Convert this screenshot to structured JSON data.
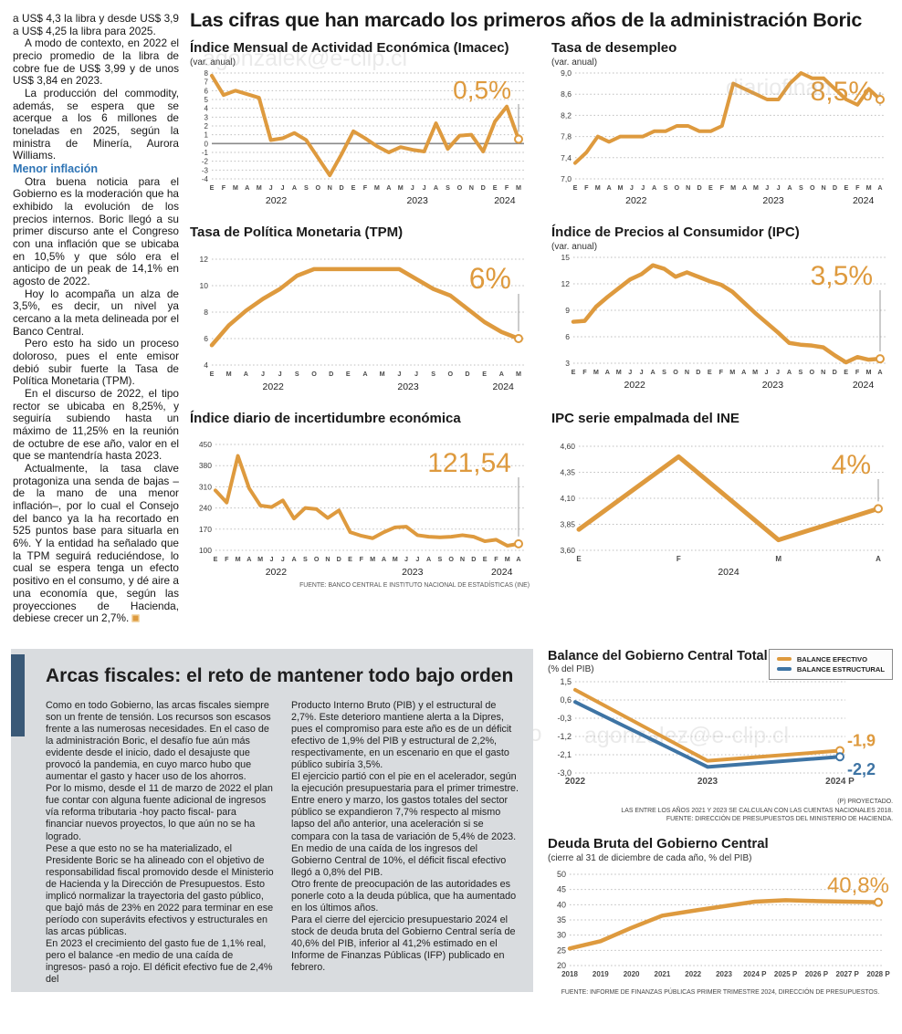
{
  "main_title": "Las cifras que han marcado los primeros años de la administración Boric",
  "colors": {
    "orange": "#DE9A3E",
    "blue": "#3E74A4",
    "subhead_blue": "#2E74B5",
    "accent_bar": "#3A5977",
    "fiscal_bg": "#D9DCDF"
  },
  "watermarks": {
    "w1": "agonzalek@e-clip.cl",
    "w2": "diariofinan",
    "w3": "diariofinanciero",
    "w4": "agonzalez@e-clip.cl"
  },
  "article": {
    "paragraphs": [
      "a US$ 4,3 la libra y desde US$ 3,9 a US$ 4,25 la libra para 2025.",
      "A modo de contexto, en 2022 el precio promedio de la libra de cobre fue de US$ 3,99 y de unos US$ 3,84 en 2023.",
      "La producción del commodity, además, se espera que se acerque a los 6 millones de toneladas en 2025, según la ministra de Minería, Aurora Williams."
    ],
    "subhead": "Menor inflación",
    "paragraphs2": [
      "Otra buena noticia para el Gobierno es la moderación que ha exhibido la evolución de los precios internos. Boric llegó a su primer discurso ante el Congreso con una inflación que se ubicaba en 10,5% y que sólo era el anticipo de un peak de 14,1% en agosto de 2022.",
      "Hoy lo acompaña un alza de 3,5%, es decir, un nivel ya cercano a la meta delineada por el Banco Central.",
      "Pero esto ha sido un proceso doloroso, pues el ente emisor debió subir fuerte la Tasa de Política Monetaria (TPM).",
      "En el discurso de 2022, el tipo rector se ubicaba en 8,25%, y seguiría subiendo hasta un máximo de 11,25% en la reunión de octubre de ese año, valor en el que se mantendría hasta 2023.",
      "Actualmente, la tasa clave protagoniza una senda de bajas –de la mano de una menor inflación–, por lo cual el Consejo del banco ya la ha recortado en 525 puntos base para situarla en 6%. Y la entidad ha señalado que la TPM seguirá reduciéndose, lo cual se espera tenga un efecto positivo en el consumo, y dé aire a una economía que, según las proyecciones de Hacienda, debiese crecer un 2,7%."
    ]
  },
  "chart_data": [
    {
      "id": "imacec",
      "type": "line",
      "title": "Índice Mensual de Actividad Económica (Imacec)",
      "subtitle": "(var. anual)",
      "ylim": [
        -4,
        8
      ],
      "zero_line": true,
      "yticks": [
        {
          "v": 8,
          "t": "8"
        },
        {
          "v": 7,
          "t": "7"
        },
        {
          "v": 6,
          "t": "6"
        },
        {
          "v": 5,
          "t": "5"
        },
        {
          "v": 4,
          "t": "4"
        },
        {
          "v": 3,
          "t": "3"
        },
        {
          "v": 2,
          "t": "2"
        },
        {
          "v": 1,
          "t": "1"
        },
        {
          "v": 0,
          "t": "0"
        },
        {
          "v": -1,
          "t": "-1"
        },
        {
          "v": -2,
          "t": "-2"
        },
        {
          "v": -3,
          "t": "-3"
        },
        {
          "v": -4,
          "t": "-4"
        }
      ],
      "xlabels": [
        "E",
        "F",
        "M",
        "A",
        "M",
        "J",
        "J",
        "A",
        "S",
        "O",
        "N",
        "D",
        "E",
        "F",
        "M",
        "A",
        "M",
        "J",
        "J",
        "A",
        "S",
        "O",
        "N",
        "D",
        "E",
        "F",
        "M"
      ],
      "years": [
        {
          "label": "2022",
          "f": 0.21
        },
        {
          "label": "2023",
          "f": 0.67
        },
        {
          "label": "2024",
          "f": 0.955
        }
      ],
      "series": [
        {
          "name": "Imacec var. anual",
          "color": "#DE9A3E",
          "values": [
            7.7,
            5.5,
            6.0,
            5.6,
            5.2,
            0.4,
            0.6,
            1.2,
            0.4,
            -1.6,
            -3.6,
            -1.2,
            1.4,
            0.6,
            -0.3,
            -1.0,
            -0.4,
            -0.7,
            -0.9,
            2.3,
            -0.6,
            0.9,
            1.0,
            -0.9,
            2.5,
            4.2,
            0.5
          ]
        }
      ],
      "highlight": "0,5%"
    },
    {
      "id": "desempleo",
      "type": "line",
      "title": "Tasa de desempleo",
      "subtitle": "(var. anual)",
      "ylim": [
        7.0,
        9.0
      ],
      "yticks": [
        {
          "v": 9.0,
          "t": "9,0"
        },
        {
          "v": 8.6,
          "t": "8,6"
        },
        {
          "v": 8.2,
          "t": "8,2"
        },
        {
          "v": 7.8,
          "t": "7,8"
        },
        {
          "v": 7.4,
          "t": "7,4"
        },
        {
          "v": 7.0,
          "t": "7,0"
        }
      ],
      "xlabels": [
        "E",
        "F",
        "M",
        "A",
        "M",
        "J",
        "J",
        "A",
        "S",
        "O",
        "N",
        "D",
        "E",
        "F",
        "M",
        "A",
        "M",
        "J",
        "J",
        "A",
        "S",
        "O",
        "N",
        "D",
        "E",
        "F",
        "M",
        "A"
      ],
      "years": [
        {
          "label": "2022",
          "f": 0.2
        },
        {
          "label": "2023",
          "f": 0.65
        },
        {
          "label": "2024",
          "f": 0.945
        }
      ],
      "series": [
        {
          "name": "Tasa de desempleo",
          "color": "#DE9A3E",
          "values": [
            7.3,
            7.5,
            7.8,
            7.7,
            7.8,
            7.8,
            7.8,
            7.9,
            7.9,
            8.0,
            8.0,
            7.9,
            7.9,
            8.0,
            8.8,
            8.7,
            8.6,
            8.5,
            8.5,
            8.8,
            9.0,
            8.9,
            8.9,
            8.7,
            8.5,
            8.4,
            8.7,
            8.5
          ]
        }
      ],
      "highlight": "8,5%"
    },
    {
      "id": "tpm",
      "type": "line",
      "title": "Tasa de Política Monetaria (TPM)",
      "subtitle": "",
      "ylim": [
        4,
        12
      ],
      "yticks": [
        {
          "v": 12,
          "t": "12"
        },
        {
          "v": 10,
          "t": "10"
        },
        {
          "v": 8,
          "t": "8"
        },
        {
          "v": 6,
          "t": "6"
        },
        {
          "v": 4,
          "t": "4"
        }
      ],
      "xlabels": [
        "E",
        "M",
        "A",
        "J",
        "J",
        "S",
        "O",
        "D",
        "E",
        "A",
        "M",
        "J",
        "J",
        "S",
        "O",
        "D",
        "E",
        "A",
        "M"
      ],
      "years": [
        {
          "label": "2022",
          "f": 0.2
        },
        {
          "label": "2023",
          "f": 0.64
        },
        {
          "label": "2024",
          "f": 0.95
        }
      ],
      "series": [
        {
          "name": "TPM",
          "color": "#DE9A3E",
          "values": [
            5.5,
            7.0,
            8.1,
            9.0,
            9.75,
            10.75,
            11.25,
            11.25,
            11.25,
            11.25,
            11.25,
            11.25,
            10.5,
            9.75,
            9.25,
            8.25,
            7.25,
            6.5,
            6.0
          ]
        }
      ],
      "highlight": "6%"
    },
    {
      "id": "ipc",
      "type": "line",
      "title": "Índice de Precios al Consumidor (IPC)",
      "subtitle": "(var. anual)",
      "ylim": [
        3,
        15
      ],
      "yticks": [
        {
          "v": 15,
          "t": "15"
        },
        {
          "v": 12,
          "t": "12"
        },
        {
          "v": 9,
          "t": "9"
        },
        {
          "v": 6,
          "t": "6"
        },
        {
          "v": 3,
          "t": "3"
        }
      ],
      "xlabels": [
        "E",
        "F",
        "M",
        "A",
        "M",
        "J",
        "J",
        "A",
        "S",
        "O",
        "N",
        "D",
        "E",
        "F",
        "M",
        "A",
        "M",
        "J",
        "J",
        "A",
        "S",
        "O",
        "N",
        "D",
        "E",
        "F",
        "M",
        "A"
      ],
      "years": [
        {
          "label": "2022",
          "f": 0.2
        },
        {
          "label": "2023",
          "f": 0.65
        },
        {
          "label": "2024",
          "f": 0.945
        }
      ],
      "series": [
        {
          "name": "IPC var. anual",
          "color": "#DE9A3E",
          "values": [
            7.7,
            7.8,
            9.4,
            10.5,
            11.5,
            12.5,
            13.1,
            14.1,
            13.7,
            12.8,
            13.3,
            12.8,
            12.3,
            11.9,
            11.1,
            9.9,
            8.7,
            7.6,
            6.5,
            5.3,
            5.1,
            5.0,
            4.8,
            3.9,
            3.1,
            3.7,
            3.4,
            3.5
          ]
        }
      ],
      "highlight": "3,5%"
    },
    {
      "id": "incertidumbre",
      "type": "line",
      "title": "Índice diario de incertidumbre económica",
      "subtitle": "",
      "ylim": [
        100,
        450
      ],
      "yticks": [
        {
          "v": 450,
          "t": "450"
        },
        {
          "v": 380,
          "t": "380"
        },
        {
          "v": 310,
          "t": "310"
        },
        {
          "v": 240,
          "t": "240"
        },
        {
          "v": 170,
          "t": "170"
        },
        {
          "v": 100,
          "t": "100"
        }
      ],
      "xlabels": [
        "E",
        "F",
        "M",
        "A",
        "M",
        "J",
        "J",
        "A",
        "S",
        "O",
        "N",
        "D",
        "E",
        "F",
        "M",
        "A",
        "M",
        "J",
        "J",
        "A",
        "S",
        "O",
        "N",
        "D",
        "E",
        "F",
        "M",
        "A"
      ],
      "years": [
        {
          "label": "2022",
          "f": 0.2
        },
        {
          "label": "2023",
          "f": 0.65
        },
        {
          "label": "2024",
          "f": 0.945
        }
      ],
      "series": [
        {
          "name": "Incertidumbre económica",
          "color": "#DE9A3E",
          "values": [
            298,
            258,
            412,
            305,
            248,
            243,
            265,
            205,
            240,
            236,
            207,
            232,
            160,
            148,
            140,
            160,
            176,
            178,
            150,
            145,
            143,
            145,
            150,
            145,
            130,
            135,
            115,
            121.54
          ]
        }
      ],
      "highlight": "121,54",
      "source": "FUENTE: BANCO CENTRAL E INSTITUTO NACIONAL DE ESTADÍSTICAS (INE)"
    },
    {
      "id": "ipc-empalmada",
      "type": "line",
      "title": "IPC serie empalmada del INE",
      "subtitle": "",
      "ylim": [
        3.6,
        4.6
      ],
      "yticks": [
        {
          "v": 4.6,
          "t": "4,60"
        },
        {
          "v": 4.35,
          "t": "4,35"
        },
        {
          "v": 4.1,
          "t": "4,10"
        },
        {
          "v": 3.85,
          "t": "3,85"
        },
        {
          "v": 3.6,
          "t": "3,60"
        }
      ],
      "xlabels": [
        "E",
        "F",
        "M",
        "A"
      ],
      "years": [
        {
          "label": "2024",
          "f": 0.5
        }
      ],
      "series": [
        {
          "name": "IPC serie empalmada",
          "color": "#DE9A3E",
          "values": [
            3.8,
            4.5,
            3.7,
            4.0
          ]
        }
      ],
      "highlight": "4%"
    },
    {
      "id": "balance",
      "type": "line",
      "title": "Balance del Gobierno Central Total",
      "subtitle": "(% del PIB)",
      "ylim": [
        -3.0,
        1.5
      ],
      "yticks": [
        {
          "v": 1.5,
          "t": "1,5"
        },
        {
          "v": 0.6,
          "t": "0,6"
        },
        {
          "v": -0.3,
          "t": "-0,3"
        },
        {
          "v": -1.2,
          "t": "-1,2"
        },
        {
          "v": -2.1,
          "t": "-2,1"
        },
        {
          "v": -3.0,
          "t": "-3,0"
        }
      ],
      "xlabels": [
        "2022",
        "2023",
        "2024 P"
      ],
      "series": [
        {
          "name": "BALANCE EFECTIVO",
          "color": "#DE9A3E",
          "values": [
            1.1,
            -2.4,
            -1.9
          ],
          "end_label": "-1,9",
          "label_dy": -5
        },
        {
          "name": "BALANCE ESTRUCTURAL",
          "color": "#3E74A4",
          "values": [
            0.5,
            -2.7,
            -2.2
          ],
          "end_label": "-2,2",
          "label_dy": 20
        }
      ],
      "footnotes": [
        "(P) PROYECTADO.",
        "LAS ENTRE LOS AÑOS 2021 Y 2023 SE CALCULAN  CON LAS CUENTAS NACIONALES 2018.",
        "FUENTE: DIRECCIÓN DE PRESUPUESTOS DEL MINISTERIO DE HACIENDA."
      ]
    },
    {
      "id": "deuda",
      "type": "line",
      "title": "Deuda Bruta del Gobierno Central",
      "subtitle": "(cierre al 31 de diciembre de cada año, % del PIB)",
      "ylim": [
        20,
        50
      ],
      "yticks": [
        {
          "v": 50,
          "t": "50"
        },
        {
          "v": 45,
          "t": "45"
        },
        {
          "v": 40,
          "t": "40"
        },
        {
          "v": 35,
          "t": "35"
        },
        {
          "v": 30,
          "t": "30"
        },
        {
          "v": 25,
          "t": "25"
        },
        {
          "v": 20,
          "t": "20"
        }
      ],
      "xlabels": [
        "2018",
        "2019",
        "2020",
        "2021",
        "2022",
        "2023",
        "2024 P",
        "2025 P",
        "2026 P",
        "2027 P",
        "2028 P"
      ],
      "series": [
        {
          "name": "Deuda bruta",
          "color": "#DE9A3E",
          "values": [
            25.6,
            28.0,
            32.4,
            36.4,
            38.0,
            39.5,
            41.0,
            41.5,
            41.2,
            41.0,
            40.8
          ]
        }
      ],
      "highlight": "40,8%",
      "source": "FUENTE: INFORME DE FINANZAS PÚBLICAS PRIMER TRIMESTRE 2024, DIRECCIÓN DE PRESUPUESTOS."
    }
  ],
  "fiscal": {
    "title": "Arcas fiscales: el reto de mantener todo bajo orden",
    "col1": [
      "Como en todo Gobierno, las arcas fiscales siempre son un frente de tensión. Los recursos son escasos frente a las numerosas necesidades. En el caso de la administración Boric, el desafío fue aún más evidente desde el inicio, dado el desajuste que provocó la pandemia, en cuyo marco hubo que aumentar el gasto y hacer uso de los ahorros.",
      "Por lo mismo, desde el 11 de marzo de 2022 el plan fue contar con alguna fuente adicional de ingresos vía reforma tributaria -hoy pacto fiscal- para financiar nuevos proyectos, lo que aún no se ha logrado.",
      "Pese a que esto no se ha materializado, el Presidente Boric se ha alineado con el objetivo de responsabilidad fiscal promovido desde el Ministerio de Hacienda y la Dirección de Presupuestos. Esto implicó normalizar la trayectoria del gasto público, que bajó más de 23% en 2022 para terminar en ese período con superávits efectivos y estructurales en las arcas públicas.",
      "En 2023 el crecimiento del gasto fue de 1,1% real, pero el balance -en medio de una caída de ingresos-  pasó a rojo. El déficit efectivo fue de 2,4% del"
    ],
    "col2": [
      "Producto Interno Bruto (PIB) y el estructural de 2,7%. Este deterioro mantiene alerta a la Dipres, pues el compromiso para este año es de un déficit efectivo de 1,9% del PIB y estructural de 2,2%, respectivamente, en un escenario en que el gasto público subiría 3,5%.",
      "El ejercicio partió con el pie en el acelerador, según la ejecución presupuestaria para el primer trimestre. Entre enero y marzo, los gastos totales del sector público se expandieron 7,7% respecto al mismo lapso del año anterior, una aceleración si se compara con la tasa de variación de 5,4% de 2023.",
      "En medio de una caída de los ingresos del Gobierno Central de 10%, el déficit fiscal efectivo llegó a 0,8% del PIB.",
      "Otro frente de preocupación de las autoridades es ponerle coto a la deuda pública, que ha aumentado en los últimos años.",
      "Para el cierre del ejercicio presupuestario 2024 el stock de deuda bruta del Gobierno Central sería de 40,6% del PIB, inferior al 41,2% estimado en el Informe de Finanzas Públicas (IFP) publicado en febrero."
    ]
  }
}
